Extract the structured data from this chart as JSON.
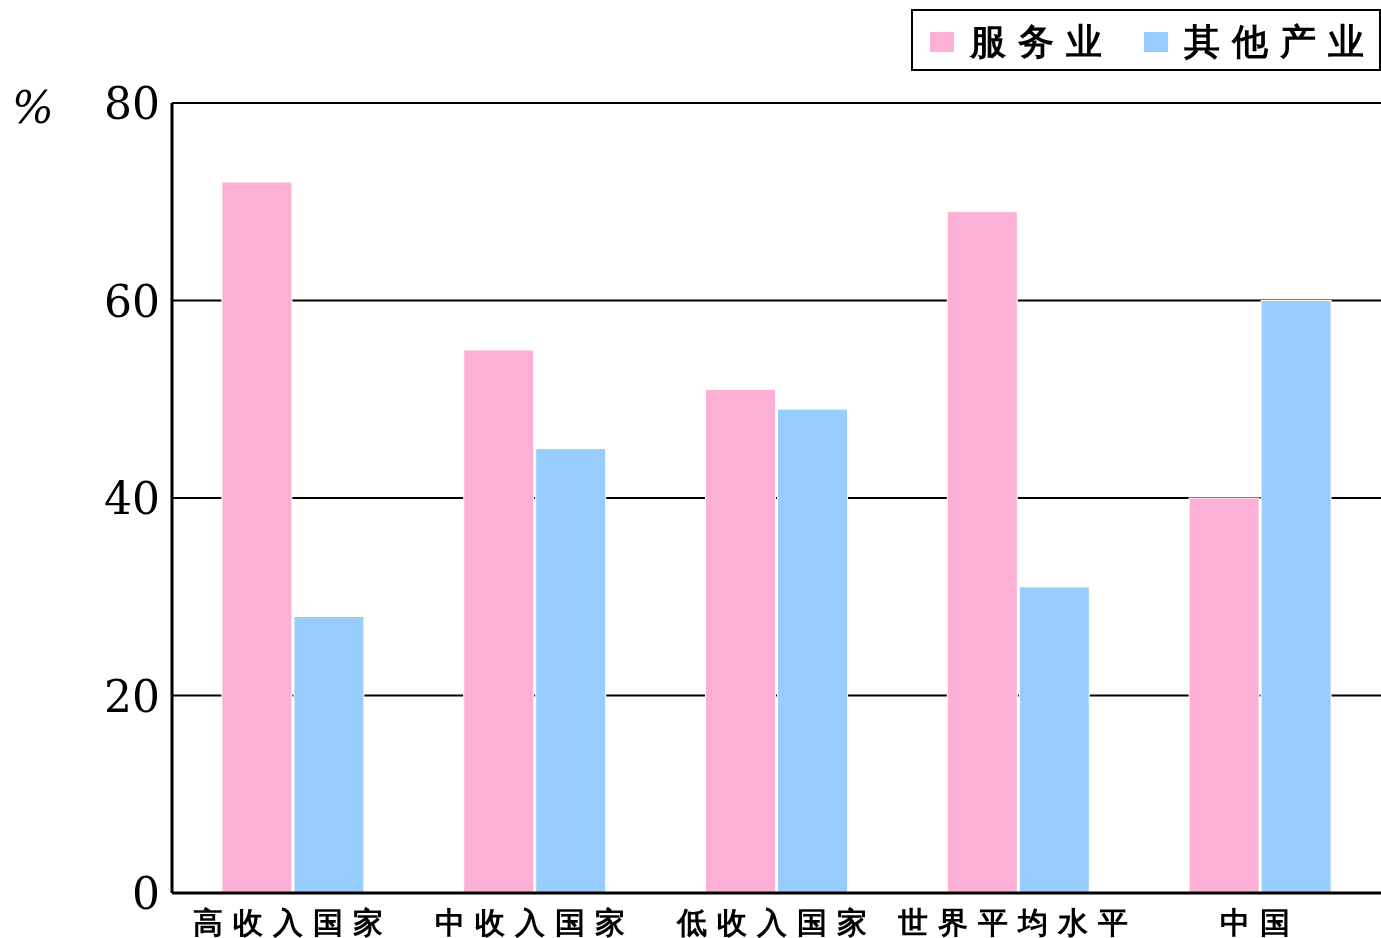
{
  "chart_data": {
    "type": "bar",
    "ylabel": "%",
    "categories": [
      "高收入国家",
      "中收入国家",
      "低收入国家",
      "世界平均水平",
      "中国"
    ],
    "series": [
      {
        "name": "服务业",
        "color": "#fdb0d6",
        "values": [
          72,
          55,
          51,
          69,
          40
        ]
      },
      {
        "name": "其他产业",
        "color": "#99ccff",
        "values": [
          28,
          45,
          49,
          31,
          60
        ]
      }
    ],
    "ylim": [
      0,
      80
    ],
    "yticks": [
      0,
      20,
      40,
      60,
      80
    ],
    "grid": "y",
    "legend": "top right"
  }
}
